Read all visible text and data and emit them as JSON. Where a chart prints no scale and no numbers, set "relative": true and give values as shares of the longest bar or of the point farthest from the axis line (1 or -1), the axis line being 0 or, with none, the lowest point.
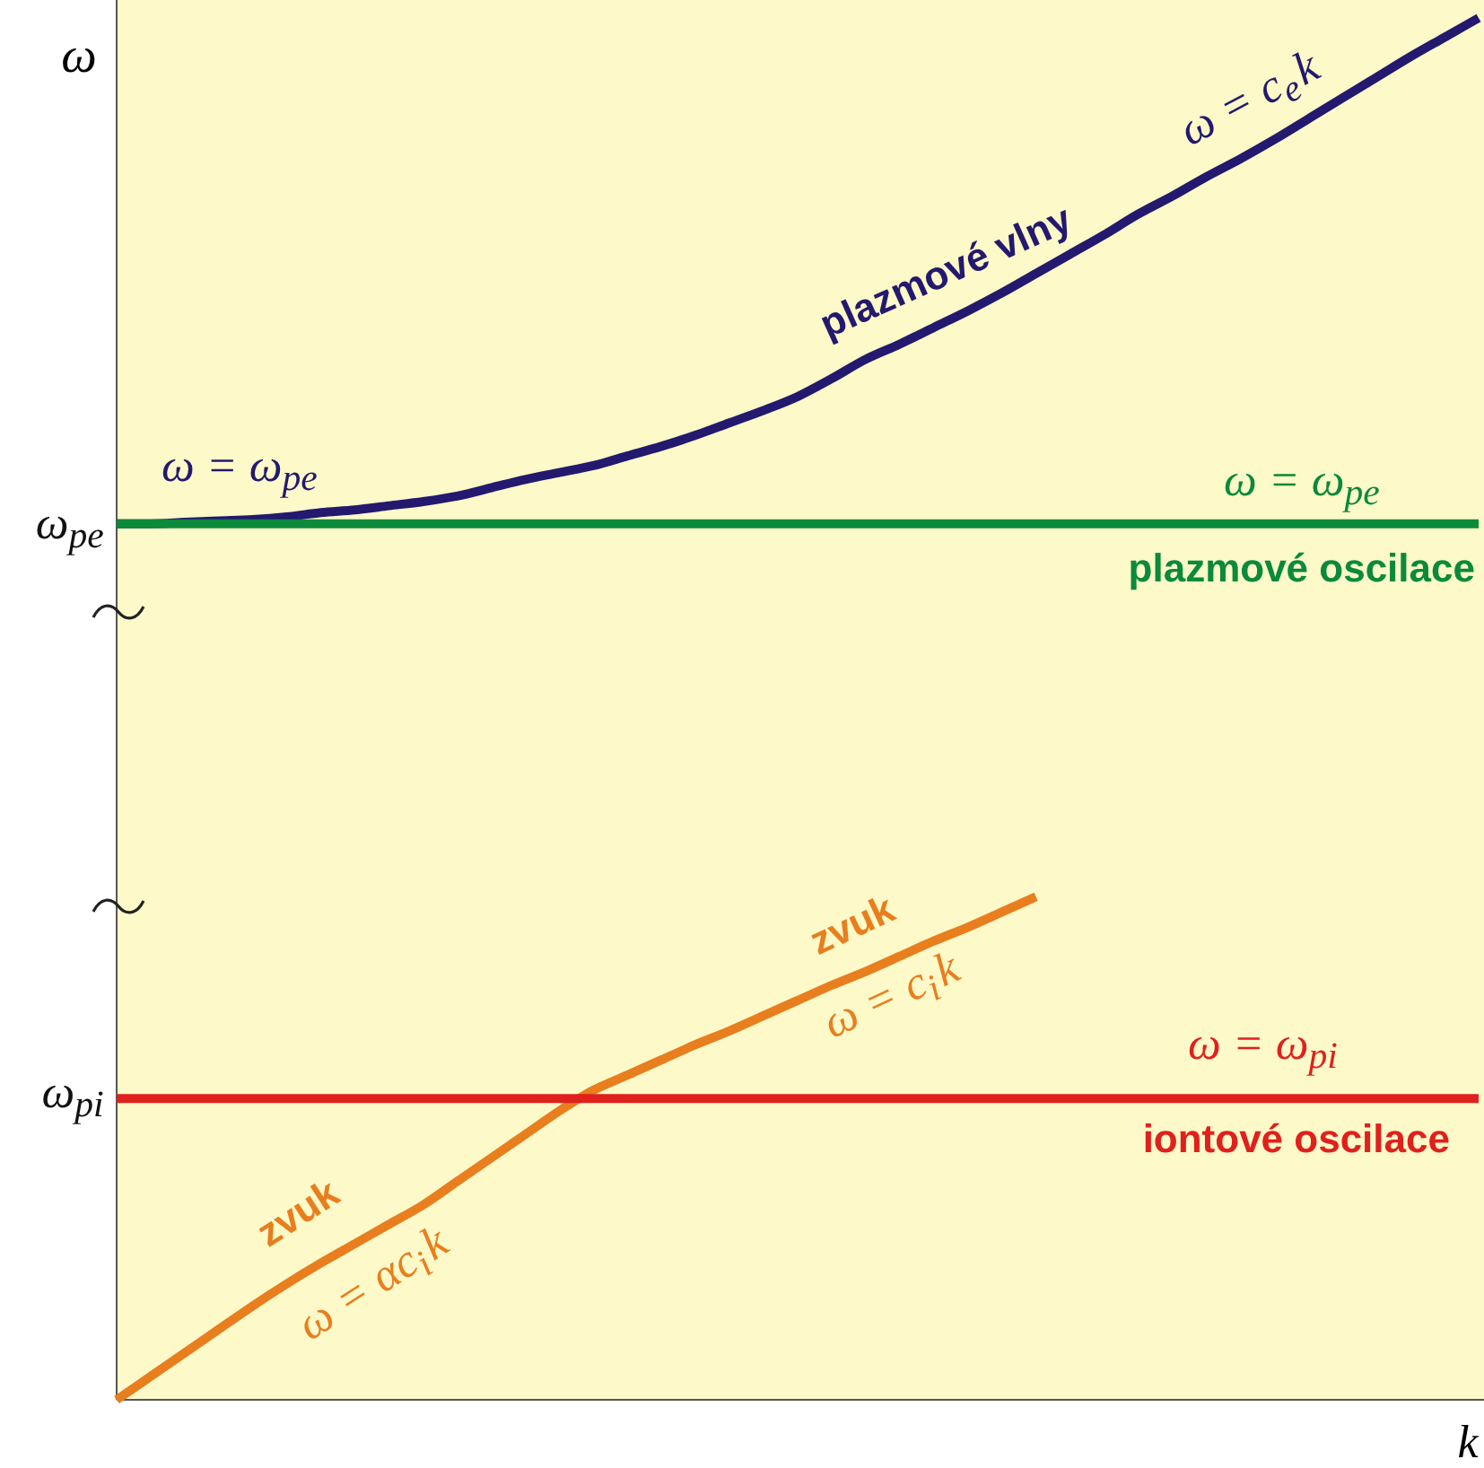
{
  "chart_data": {
    "type": "line",
    "relative": true,
    "ylabel": "ω",
    "xlabel": "k",
    "categories": [
      null,
      null,
      null,
      null,
      null,
      null,
      null,
      null,
      null,
      null,
      null,
      null,
      null,
      null,
      null,
      null,
      null,
      null,
      null,
      null,
      null,
      null,
      null,
      null,
      null,
      null,
      null,
      null,
      null,
      null,
      null,
      null,
      null,
      null,
      null,
      null,
      null,
      null,
      null,
      null,
      null
    ],
    "series": [
      {
        "name": "plazmové vlny",
        "color": "#23196e",
        "values": [
          0.634,
          0.634,
          0.635,
          0.636,
          0.637,
          0.639,
          0.642,
          0.644,
          0.647,
          0.65,
          0.654,
          0.66,
          0.666,
          0.671,
          0.676,
          0.683,
          0.69,
          0.698,
          0.707,
          0.716,
          0.726,
          0.739,
          0.753,
          0.764,
          0.776,
          0.788,
          0.801,
          0.815,
          0.829,
          0.843,
          0.858,
          0.871,
          0.885,
          0.898,
          0.912,
          0.927,
          0.942,
          0.957,
          0.972,
          0.986,
          1.0
        ]
      },
      {
        "name": "plazmové oscilace",
        "color": "#0a8a3a",
        "values": [
          0.634,
          0.634,
          0.634,
          0.634,
          0.634,
          0.634,
          0.634,
          0.634,
          0.634,
          0.634,
          0.634,
          0.634,
          0.634,
          0.634,
          0.634,
          0.634,
          0.634,
          0.634,
          0.634,
          0.634,
          0.634,
          0.634,
          0.634,
          0.634,
          0.634,
          0.634,
          0.634,
          0.634,
          0.634,
          0.634,
          0.634,
          0.634,
          0.634,
          0.634,
          0.634,
          0.634,
          0.634,
          0.634,
          0.634,
          0.634,
          0.634
        ]
      },
      {
        "name": "zvuk",
        "color": "#e87e1e",
        "values": [
          0,
          0.017,
          0.034,
          0.051,
          0.068,
          0.084,
          0.099,
          0.113,
          0.127,
          0.141,
          0.158,
          0.175,
          0.192,
          0.209,
          0.224,
          0.235,
          0.246,
          0.257,
          0.267,
          0.278,
          0.289,
          0.3,
          0.31,
          0.321,
          0.332,
          0.342,
          0.353,
          0.364,
          null,
          null,
          null,
          null,
          null,
          null,
          null,
          null,
          null,
          null,
          null,
          null,
          null
        ]
      },
      {
        "name": "iontové oscilace",
        "color": "#e0201c",
        "values": [
          0.218,
          0.218,
          0.218,
          0.218,
          0.218,
          0.218,
          0.218,
          0.218,
          0.218,
          0.218,
          0.218,
          0.218,
          0.218,
          0.218,
          0.218,
          0.218,
          0.218,
          0.218,
          0.218,
          0.218,
          0.218,
          0.218,
          0.218,
          0.218,
          0.218,
          0.218,
          0.218,
          0.218,
          0.218,
          0.218,
          0.218,
          0.218,
          0.218,
          0.218,
          0.218,
          0.218,
          0.218,
          0.218,
          0.218,
          0.218,
          0.218
        ]
      }
    ],
    "annotations": [
      "ω$_{pe}$",
      "ω$_{pi}$",
      "ω = ω$_{pe}$",
      "ω = c$_{e}$k",
      "ω = ω$_{pe}$",
      "ω = ω$_{pi}$",
      "ω = c$_{i}$k",
      "zvuk",
      "ω = αc$_{i}$k"
    ]
  }
}
